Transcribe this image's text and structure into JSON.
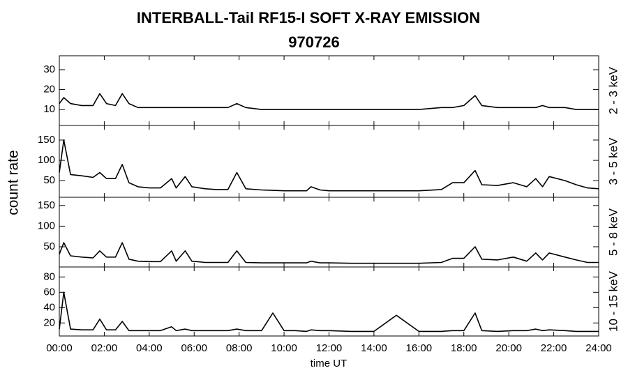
{
  "chart_data": [
    {
      "type": "line",
      "title": "INTERBALL-Tail RF15-I SOFT X-RAY EMISSION",
      "subtitle": "970726",
      "ylabel": "count rate",
      "panel_label": "2 - 3 keV",
      "xlim": [
        0,
        24
      ],
      "ylim": [
        2,
        37
      ],
      "yticks": [
        10,
        20,
        30
      ],
      "x": [
        0,
        0.2,
        0.5,
        1,
        1.5,
        1.8,
        2.1,
        2.5,
        2.8,
        3.1,
        3.5,
        4,
        4.5,
        5,
        5.2,
        5.6,
        5.9,
        6.5,
        7,
        7.5,
        7.9,
        8.3,
        9,
        9.5,
        10,
        10.5,
        11,
        11.2,
        11.6,
        12,
        13,
        14,
        15,
        16,
        17,
        17.5,
        18,
        18.5,
        18.8,
        19.5,
        20.2,
        20.8,
        21.2,
        21.5,
        21.8,
        22.5,
        23,
        23.5,
        24
      ],
      "series": [
        {
          "color": "#000000",
          "values": [
            13,
            16,
            13,
            12,
            12,
            18,
            13,
            12,
            18,
            13,
            11,
            11,
            11,
            11,
            11,
            11,
            11,
            11,
            11,
            11,
            13,
            11,
            10,
            10,
            10,
            10,
            10,
            10,
            10,
            10,
            10,
            10,
            10,
            10,
            11,
            11,
            12,
            17,
            12,
            11,
            11,
            11,
            11,
            12,
            11,
            11,
            10,
            10,
            10
          ]
        }
      ]
    },
    {
      "type": "line",
      "panel_label": "3 - 5 keV",
      "xlim": [
        0,
        24
      ],
      "ylim": [
        9,
        186
      ],
      "yticks": [
        50,
        100,
        150
      ],
      "x": [
        0,
        0.2,
        0.5,
        1,
        1.5,
        1.8,
        2.1,
        2.5,
        2.8,
        3.1,
        3.5,
        4,
        4.5,
        5,
        5.2,
        5.6,
        5.9,
        6.5,
        7,
        7.5,
        7.9,
        8.3,
        9,
        9.5,
        10,
        10.5,
        11,
        11.2,
        11.6,
        12,
        13,
        14,
        15,
        16,
        17,
        17.5,
        18,
        18.5,
        18.8,
        19.5,
        20.2,
        20.8,
        21.2,
        21.5,
        21.8,
        22.5,
        23,
        23.5,
        24
      ],
      "series": [
        {
          "color": "#000000",
          "values": [
            70,
            150,
            65,
            62,
            58,
            70,
            55,
            55,
            90,
            45,
            35,
            32,
            32,
            55,
            32,
            60,
            35,
            30,
            28,
            28,
            70,
            30,
            27,
            26,
            25,
            25,
            25,
            35,
            27,
            25,
            25,
            25,
            25,
            25,
            28,
            45,
            45,
            75,
            40,
            38,
            45,
            35,
            55,
            35,
            60,
            50,
            40,
            32,
            30
          ]
        }
      ]
    },
    {
      "type": "line",
      "panel_label": "5 - 8 keV",
      "xlim": [
        0,
        24
      ],
      "ylim": [
        1,
        170
      ],
      "yticks": [
        50,
        100,
        150
      ],
      "x": [
        0,
        0.2,
        0.5,
        1,
        1.5,
        1.8,
        2.1,
        2.5,
        2.8,
        3.1,
        3.5,
        4,
        4.5,
        5,
        5.2,
        5.6,
        5.9,
        6.5,
        7,
        7.5,
        7.9,
        8.3,
        9,
        9.5,
        10,
        10.5,
        11,
        11.2,
        11.6,
        12,
        13,
        14,
        15,
        16,
        17,
        17.5,
        18,
        18.5,
        18.8,
        19.5,
        20.2,
        20.8,
        21.2,
        21.5,
        21.8,
        22.5,
        23,
        23.5,
        24
      ],
      "series": [
        {
          "color": "#000000",
          "values": [
            32,
            60,
            28,
            25,
            23,
            40,
            25,
            25,
            60,
            20,
            15,
            14,
            14,
            40,
            15,
            40,
            15,
            12,
            12,
            12,
            40,
            12,
            11,
            11,
            11,
            11,
            11,
            15,
            11,
            11,
            10,
            10,
            10,
            10,
            12,
            22,
            22,
            50,
            20,
            18,
            25,
            15,
            35,
            18,
            35,
            25,
            18,
            12,
            12
          ]
        }
      ]
    },
    {
      "type": "line",
      "panel_label": "10 - 15 keV",
      "xlabel": "time UT",
      "xlim": [
        0,
        24
      ],
      "ylim": [
        3,
        93
      ],
      "yticks": [
        20,
        40,
        60,
        80
      ],
      "xticks": [
        {
          "value": 0,
          "label": "00:00"
        },
        {
          "value": 2,
          "label": "02:00"
        },
        {
          "value": 4,
          "label": "04:00"
        },
        {
          "value": 6,
          "label": "06:00"
        },
        {
          "value": 8,
          "label": "08:00"
        },
        {
          "value": 10,
          "label": "10:00"
        },
        {
          "value": 12,
          "label": "12:00"
        },
        {
          "value": 14,
          "label": "14:00"
        },
        {
          "value": 16,
          "label": "16:00"
        },
        {
          "value": 18,
          "label": "18:00"
        },
        {
          "value": 20,
          "label": "20:00"
        },
        {
          "value": 22,
          "label": "22:00"
        },
        {
          "value": 24,
          "label": "24:00"
        }
      ],
      "x": [
        0,
        0.2,
        0.5,
        1,
        1.5,
        1.8,
        2.1,
        2.5,
        2.8,
        3.1,
        3.5,
        4,
        4.5,
        5,
        5.2,
        5.6,
        5.9,
        6.5,
        7,
        7.5,
        7.9,
        8.3,
        9,
        9.5,
        10,
        10.5,
        11,
        11.2,
        11.6,
        12,
        13,
        14,
        15,
        16,
        17,
        17.5,
        18,
        18.5,
        18.8,
        19.5,
        20.2,
        20.8,
        21.2,
        21.5,
        21.8,
        22.5,
        23,
        23.5,
        24
      ],
      "series": [
        {
          "color": "#000000",
          "values": [
            12,
            60,
            12,
            11,
            11,
            25,
            11,
            11,
            22,
            10,
            10,
            10,
            10,
            15,
            10,
            12,
            10,
            10,
            10,
            10,
            12,
            10,
            10,
            33,
            10,
            10,
            9,
            11,
            10,
            10,
            9,
            9,
            30,
            9,
            9,
            10,
            10,
            33,
            10,
            9,
            10,
            10,
            12,
            10,
            11,
            10,
            9,
            9,
            9
          ]
        }
      ]
    }
  ]
}
